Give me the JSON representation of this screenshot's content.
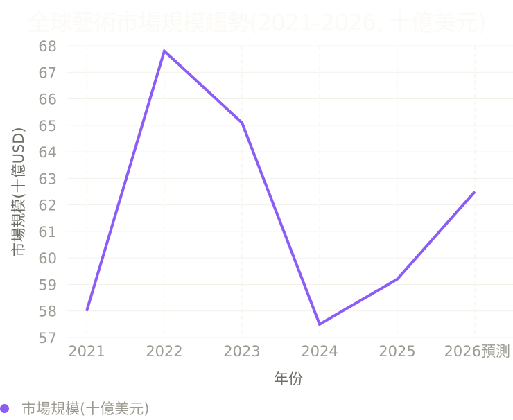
{
  "chart_data": {
    "type": "line",
    "title": "全球藝術市場規模趨勢(2021-2026, 十億美元)",
    "xlabel": "年份",
    "ylabel": "市場規模(十億USD)",
    "categories": [
      "2021",
      "2022",
      "2023",
      "2024",
      "2025",
      "2026預測"
    ],
    "series": [
      {
        "name": "市場規模(十億美元)",
        "values": [
          58.0,
          67.8,
          65.1,
          57.5,
          59.2,
          62.5
        ],
        "color": "#8b5cf6"
      }
    ],
    "ylim": [
      57,
      68
    ],
    "yticks": [
      "57",
      "58",
      "59",
      "60",
      "61",
      "62",
      "63",
      "64",
      "65",
      "66",
      "67",
      "68"
    ],
    "grid": true,
    "legend_position": "bottom-left"
  },
  "colors": {
    "line": "#8b5cf6",
    "tick_text": "#9c9a91",
    "axis_title": "#6f6d66",
    "grid": "#f3f1ea",
    "title": "#fbfaf5"
  }
}
